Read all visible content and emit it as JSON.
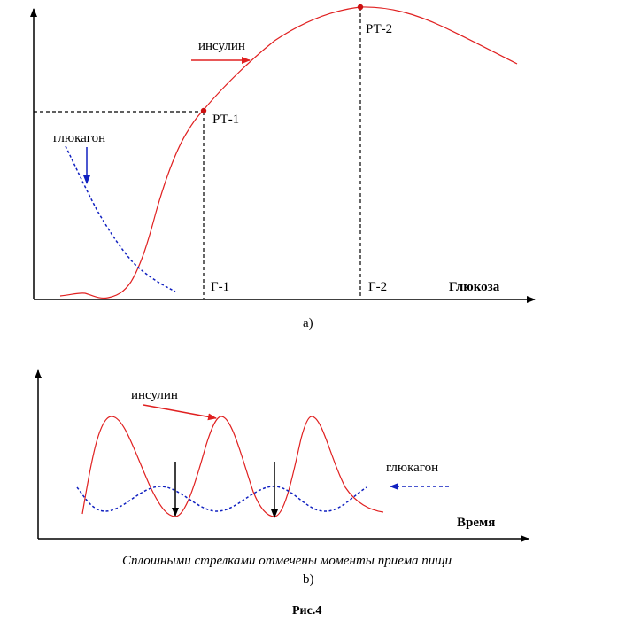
{
  "figure_a": {
    "insulin_label": "инсулин",
    "glucagon_label": "глюкагон",
    "point1_label": "РТ-1",
    "point2_label": "РТ-2",
    "g1_label": "Г-1",
    "g2_label": "Г-2",
    "xaxis_label": "Глюкоза",
    "sublabel": "а)",
    "colors": {
      "insulin": "#e02020",
      "glucagon": "#1020c0",
      "axis": "#000000"
    }
  },
  "figure_b": {
    "insulin_label": "инсулин",
    "glucagon_label": "глюкагон",
    "xaxis_label": "Время",
    "caption": "Сплошными стрелками отмечены моменты приема пищи",
    "sublabel": "b)",
    "meal_moments": 2
  },
  "figure_title": "Рис.4"
}
